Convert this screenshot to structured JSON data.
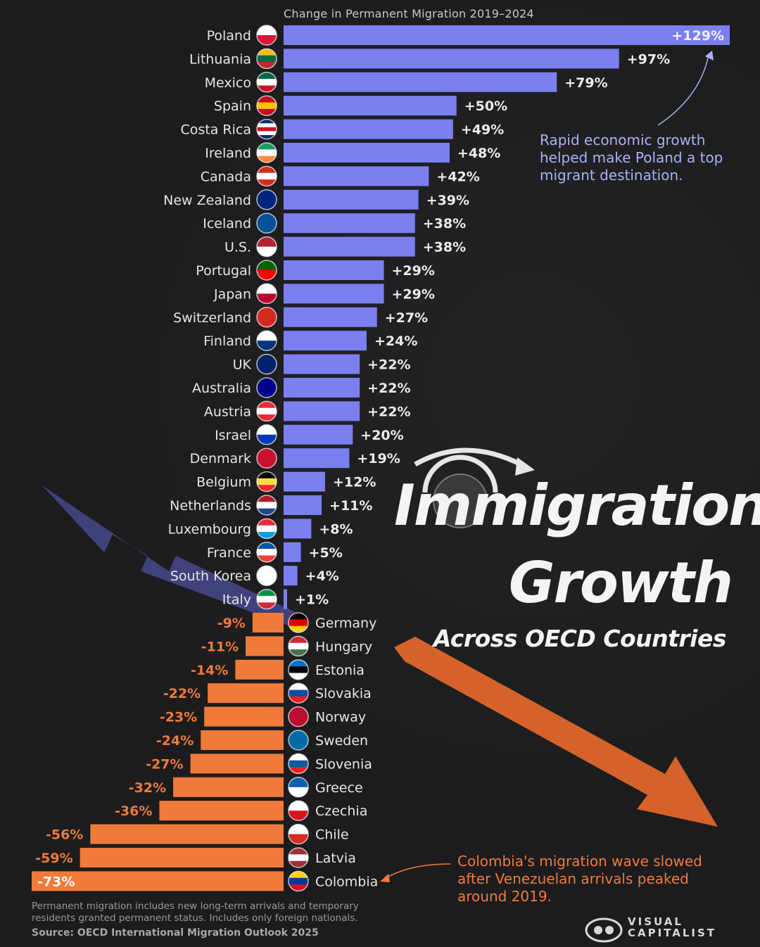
{
  "chart_data": {
    "type": "bar",
    "orientation": "horizontal-diverging",
    "title": "Change in Permanent Migration 2019–2024",
    "unit": "%",
    "categories": [
      "Poland",
      "Lithuania",
      "Mexico",
      "Spain",
      "Costa Rica",
      "Ireland",
      "Canada",
      "New Zealand",
      "Iceland",
      "U.S.",
      "Portugal",
      "Japan",
      "Switzerland",
      "Finland",
      "UK",
      "Australia",
      "Austria",
      "Israel",
      "Denmark",
      "Belgium",
      "Netherlands",
      "Luxembourg",
      "France",
      "South Korea",
      "Italy",
      "Germany",
      "Hungary",
      "Estonia",
      "Slovakia",
      "Norway",
      "Sweden",
      "Slovenia",
      "Greece",
      "Czechia",
      "Chile",
      "Latvia",
      "Colombia"
    ],
    "values": [
      129,
      97,
      79,
      50,
      49,
      48,
      42,
      39,
      38,
      38,
      29,
      29,
      27,
      24,
      22,
      22,
      22,
      20,
      19,
      12,
      11,
      8,
      5,
      4,
      1,
      -9,
      -11,
      -14,
      -22,
      -23,
      -24,
      -27,
      -32,
      -36,
      -56,
      -59,
      -73
    ],
    "labels": [
      "+129%",
      "+97%",
      "+79%",
      "+50%",
      "+49%",
      "+48%",
      "+42%",
      "+39%",
      "+38%",
      "+38%",
      "+29%",
      "+29%",
      "+27%",
      "+24%",
      "+22%",
      "+22%",
      "+22%",
      "+20%",
      "+19%",
      "+12%",
      "+11%",
      "+8%",
      "+5%",
      "+4%",
      "+1%",
      "-9%",
      "-11%",
      "-14%",
      "-22%",
      "-23%",
      "-24%",
      "-27%",
      "-32%",
      "-36%",
      "-56%",
      "-59%",
      "-73%"
    ],
    "colors": {
      "positive": "#7b7ff0",
      "negative": "#f07a3a"
    }
  },
  "title": {
    "line1": "Immigration",
    "line2": "Growth",
    "line3": "Across OECD Countries"
  },
  "annotations": {
    "poland": "Rapid economic growth helped make Poland a top migrant destination.",
    "colombia": "Colombia's migration wave slowed after Venezuelan arrivals peaked around 2019."
  },
  "footnote": "Permanent migration includes new long-term arrivals and temporary residents granted permanent status.  Includes only foreign nationals.",
  "source": "Source: OECD International Migration Outlook 2025",
  "logo": {
    "line1": "VISUAL",
    "line2": "CAPITALIST"
  },
  "flag_colors": {
    "Poland": [
      "#ffffff",
      "#dc143c"
    ],
    "Lithuania": [
      "#fdb913",
      "#006a44",
      "#c1272d"
    ],
    "Mexico": [
      "#006847",
      "#ffffff",
      "#ce1126"
    ],
    "Spain": [
      "#c60b1e",
      "#ffc400",
      "#c60b1e"
    ],
    "Costa Rica": [
      "#002b7f",
      "#ffffff",
      "#ce1126",
      "#ffffff",
      "#002b7f"
    ],
    "Ireland": [
      "#169b62",
      "#ffffff",
      "#ff883e"
    ],
    "Canada": [
      "#d52b1e",
      "#ffffff",
      "#d52b1e"
    ],
    "New Zealand": [
      "#00247d"
    ],
    "Iceland": [
      "#02529c"
    ],
    "U.S.": [
      "#b22234",
      "#ffffff"
    ],
    "Portugal": [
      "#006600",
      "#ff0000"
    ],
    "Japan": [
      "#ffffff",
      "#bc002d"
    ],
    "Switzerland": [
      "#d52b1e"
    ],
    "Finland": [
      "#ffffff",
      "#003580"
    ],
    "UK": [
      "#012169"
    ],
    "Australia": [
      "#00008b"
    ],
    "Austria": [
      "#ed2939",
      "#ffffff",
      "#ed2939"
    ],
    "Israel": [
      "#ffffff",
      "#0038b8"
    ],
    "Denmark": [
      "#c8102e"
    ],
    "Belgium": [
      "#000000",
      "#fae042",
      "#ed2939"
    ],
    "Netherlands": [
      "#ae1c28",
      "#ffffff",
      "#21468b"
    ],
    "Luxembourg": [
      "#ed2939",
      "#ffffff",
      "#00a1de"
    ],
    "France": [
      "#0055a4",
      "#ffffff",
      "#ef4135"
    ],
    "South Korea": [
      "#ffffff"
    ],
    "Italy": [
      "#009246",
      "#ffffff",
      "#ce2b37"
    ],
    "Germany": [
      "#000000",
      "#dd0000",
      "#ffce00"
    ],
    "Hungary": [
      "#ce2939",
      "#ffffff",
      "#477050"
    ],
    "Estonia": [
      "#0072ce",
      "#000000",
      "#ffffff"
    ],
    "Slovakia": [
      "#ffffff",
      "#0b4ea2",
      "#ee1c25"
    ],
    "Norway": [
      "#ba0c2f"
    ],
    "Sweden": [
      "#006aa7"
    ],
    "Slovenia": [
      "#ffffff",
      "#005da4",
      "#ed1c24"
    ],
    "Greece": [
      "#0d5eaf",
      "#ffffff"
    ],
    "Czechia": [
      "#ffffff",
      "#d7141a"
    ],
    "Chile": [
      "#ffffff",
      "#d52b1e"
    ],
    "Latvia": [
      "#9e3039",
      "#ffffff",
      "#9e3039"
    ],
    "Colombia": [
      "#fcd116",
      "#003893",
      "#ce1126"
    ]
  }
}
